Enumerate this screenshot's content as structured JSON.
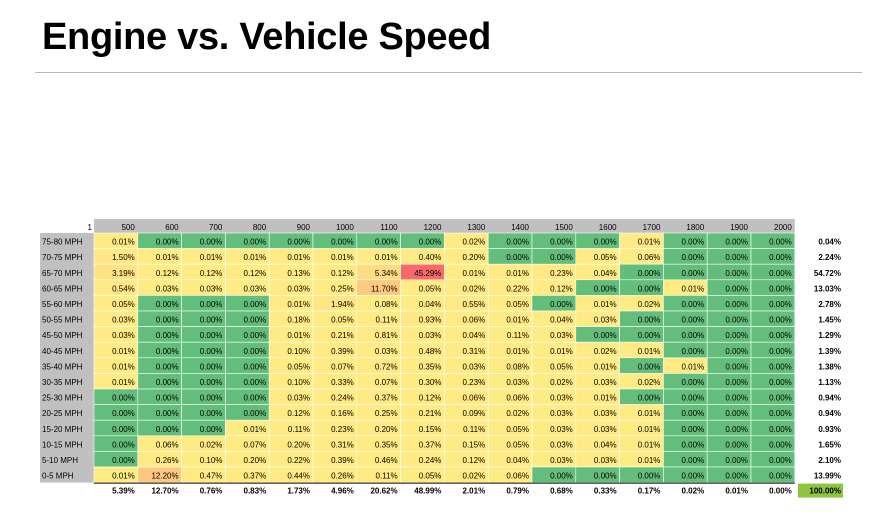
{
  "title": "Engine vs. Vehicle Speed",
  "colors": {
    "header_bg": "#c0c0c0",
    "low": "#63be7b",
    "mid": "#ffeb84",
    "high": "#f8696b",
    "total_highlight": "#8cc63f"
  },
  "chart_data": {
    "type": "heatmap",
    "corner_label": "1",
    "columns": [
      "500",
      "600",
      "700",
      "800",
      "900",
      "1000",
      "1100",
      "1200",
      "1300",
      "1400",
      "1500",
      "1600",
      "1700",
      "1800",
      "1900",
      "2000"
    ],
    "rows": [
      "75-80 MPH",
      "70-75 MPH",
      "65-70 MPH",
      "60-65 MPH",
      "55-60 MPH",
      "50-55 MPH",
      "45-50 MPH",
      "40-45 MPH",
      "35-40 MPH",
      "30-35 MPH",
      "25-30 MPH",
      "20-25 MPH",
      "15-20 MPH",
      "10-15 MPH",
      "5-10 MPH",
      "0-5 MPH"
    ],
    "values": [
      [
        "0.01%",
        "0.00%",
        "0.00%",
        "0.00%",
        "0.00%",
        "0.00%",
        "0.00%",
        "0.00%",
        "0.02%",
        "0.00%",
        "0.00%",
        "0.00%",
        "0.01%",
        "0.00%",
        "0.00%",
        "0.00%"
      ],
      [
        "1.50%",
        "0.01%",
        "0.01%",
        "0.01%",
        "0.01%",
        "0.01%",
        "0.01%",
        "0.40%",
        "0.20%",
        "0.00%",
        "0.00%",
        "0.05%",
        "0.06%",
        "0.00%",
        "0.00%",
        "0.00%"
      ],
      [
        "3.19%",
        "0.12%",
        "0.12%",
        "0.12%",
        "0.13%",
        "0.12%",
        "5.34%",
        "45.29%",
        "0.01%",
        "0.01%",
        "0.23%",
        "0.04%",
        "0.00%",
        "0.00%",
        "0.00%",
        "0.00%"
      ],
      [
        "0.54%",
        "0.03%",
        "0.03%",
        "0.03%",
        "0.03%",
        "0.25%",
        "11.70%",
        "0.05%",
        "0.02%",
        "0.22%",
        "0.12%",
        "0.00%",
        "0.00%",
        "0.01%",
        "0.00%",
        "0.00%"
      ],
      [
        "0.05%",
        "0.00%",
        "0.00%",
        "0.00%",
        "0.01%",
        "1.94%",
        "0.08%",
        "0.04%",
        "0.55%",
        "0.05%",
        "0.00%",
        "0.01%",
        "0.02%",
        "0.00%",
        "0.00%",
        "0.00%"
      ],
      [
        "0.03%",
        "0.00%",
        "0.00%",
        "0.00%",
        "0.18%",
        "0.05%",
        "0.11%",
        "0.93%",
        "0.06%",
        "0.01%",
        "0.04%",
        "0.03%",
        "0.00%",
        "0.00%",
        "0.00%",
        "0.00%"
      ],
      [
        "0.03%",
        "0.00%",
        "0.00%",
        "0.00%",
        "0.01%",
        "0.21%",
        "0.81%",
        "0.03%",
        "0.04%",
        "0.11%",
        "0.03%",
        "0.00%",
        "0.00%",
        "0.00%",
        "0.00%",
        "0.00%"
      ],
      [
        "0.01%",
        "0.00%",
        "0.00%",
        "0.00%",
        "0.10%",
        "0.39%",
        "0.03%",
        "0.48%",
        "0.31%",
        "0.01%",
        "0.01%",
        "0.02%",
        "0.01%",
        "0.00%",
        "0.00%",
        "0.00%"
      ],
      [
        "0.01%",
        "0.00%",
        "0.00%",
        "0.00%",
        "0.05%",
        "0.07%",
        "0.72%",
        "0.35%",
        "0.03%",
        "0.08%",
        "0.05%",
        "0.01%",
        "0.00%",
        "0.01%",
        "0.00%",
        "0.00%"
      ],
      [
        "0.01%",
        "0.00%",
        "0.00%",
        "0.00%",
        "0.10%",
        "0.33%",
        "0.07%",
        "0.30%",
        "0.23%",
        "0.03%",
        "0.02%",
        "0.03%",
        "0.02%",
        "0.00%",
        "0.00%",
        "0.00%"
      ],
      [
        "0.00%",
        "0.00%",
        "0.00%",
        "0.00%",
        "0.03%",
        "0.24%",
        "0.37%",
        "0.12%",
        "0.06%",
        "0.06%",
        "0.03%",
        "0.01%",
        "0.00%",
        "0.00%",
        "0.00%",
        "0.00%"
      ],
      [
        "0.00%",
        "0.00%",
        "0.00%",
        "0.00%",
        "0.12%",
        "0.16%",
        "0.25%",
        "0.21%",
        "0.09%",
        "0.02%",
        "0.03%",
        "0.03%",
        "0.01%",
        "0.00%",
        "0.00%",
        "0.00%"
      ],
      [
        "0.00%",
        "0.00%",
        "0.00%",
        "0.01%",
        "0.11%",
        "0.23%",
        "0.20%",
        "0.15%",
        "0.11%",
        "0.05%",
        "0.03%",
        "0.03%",
        "0.01%",
        "0.00%",
        "0.00%",
        "0.00%"
      ],
      [
        "0.00%",
        "0.06%",
        "0.02%",
        "0.07%",
        "0.20%",
        "0.31%",
        "0.35%",
        "0.37%",
        "0.15%",
        "0.05%",
        "0.03%",
        "0.04%",
        "0.01%",
        "0.00%",
        "0.00%",
        "0.00%"
      ],
      [
        "0.00%",
        "0.26%",
        "0.10%",
        "0.20%",
        "0.22%",
        "0.39%",
        "0.46%",
        "0.24%",
        "0.12%",
        "0.04%",
        "0.03%",
        "0.03%",
        "0.01%",
        "0.00%",
        "0.00%",
        "0.00%"
      ],
      [
        "0.01%",
        "12.20%",
        "0.47%",
        "0.37%",
        "0.44%",
        "0.26%",
        "0.11%",
        "0.05%",
        "0.02%",
        "0.06%",
        "0.00%",
        "0.00%",
        "0.00%",
        "0.00%",
        "0.00%",
        "0.00%"
      ]
    ],
    "row_totals": [
      "0.04%",
      "2.24%",
      "54.72%",
      "13.03%",
      "2.78%",
      "1.45%",
      "1.29%",
      "1.39%",
      "1.38%",
      "1.13%",
      "0.94%",
      "0.94%",
      "0.93%",
      "1.65%",
      "2.10%",
      "13.99%"
    ],
    "column_totals": [
      "5.39%",
      "12.70%",
      "0.76%",
      "0.83%",
      "1.73%",
      "4.96%",
      "20.62%",
      "48.99%",
      "2.01%",
      "0.79%",
      "0.68%",
      "0.33%",
      "0.17%",
      "0.02%",
      "0.01%",
      "0.00%"
    ],
    "grand_total": "100.00%"
  }
}
